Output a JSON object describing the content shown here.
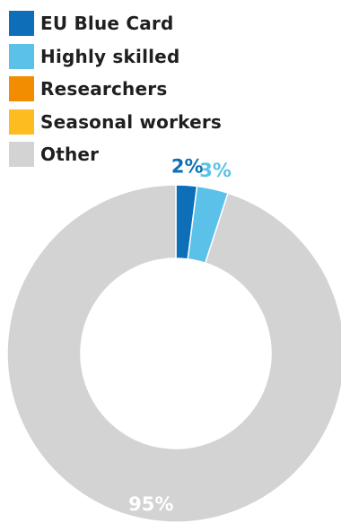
{
  "chart_data": {
    "type": "pie",
    "categories": [
      "EU Blue Card",
      "Highly skilled",
      "Researchers",
      "Seasonal workers",
      "Other"
    ],
    "values": [
      2,
      3,
      0,
      0,
      95
    ],
    "value_labels": [
      "2%",
      "3%",
      "",
      "",
      "95%"
    ],
    "colors": [
      "#0e6fb8",
      "#5bc1e8",
      "#f28c00",
      "#fdbd21",
      "#d3d3d3"
    ],
    "donut": true,
    "legend_position": "top-left"
  }
}
